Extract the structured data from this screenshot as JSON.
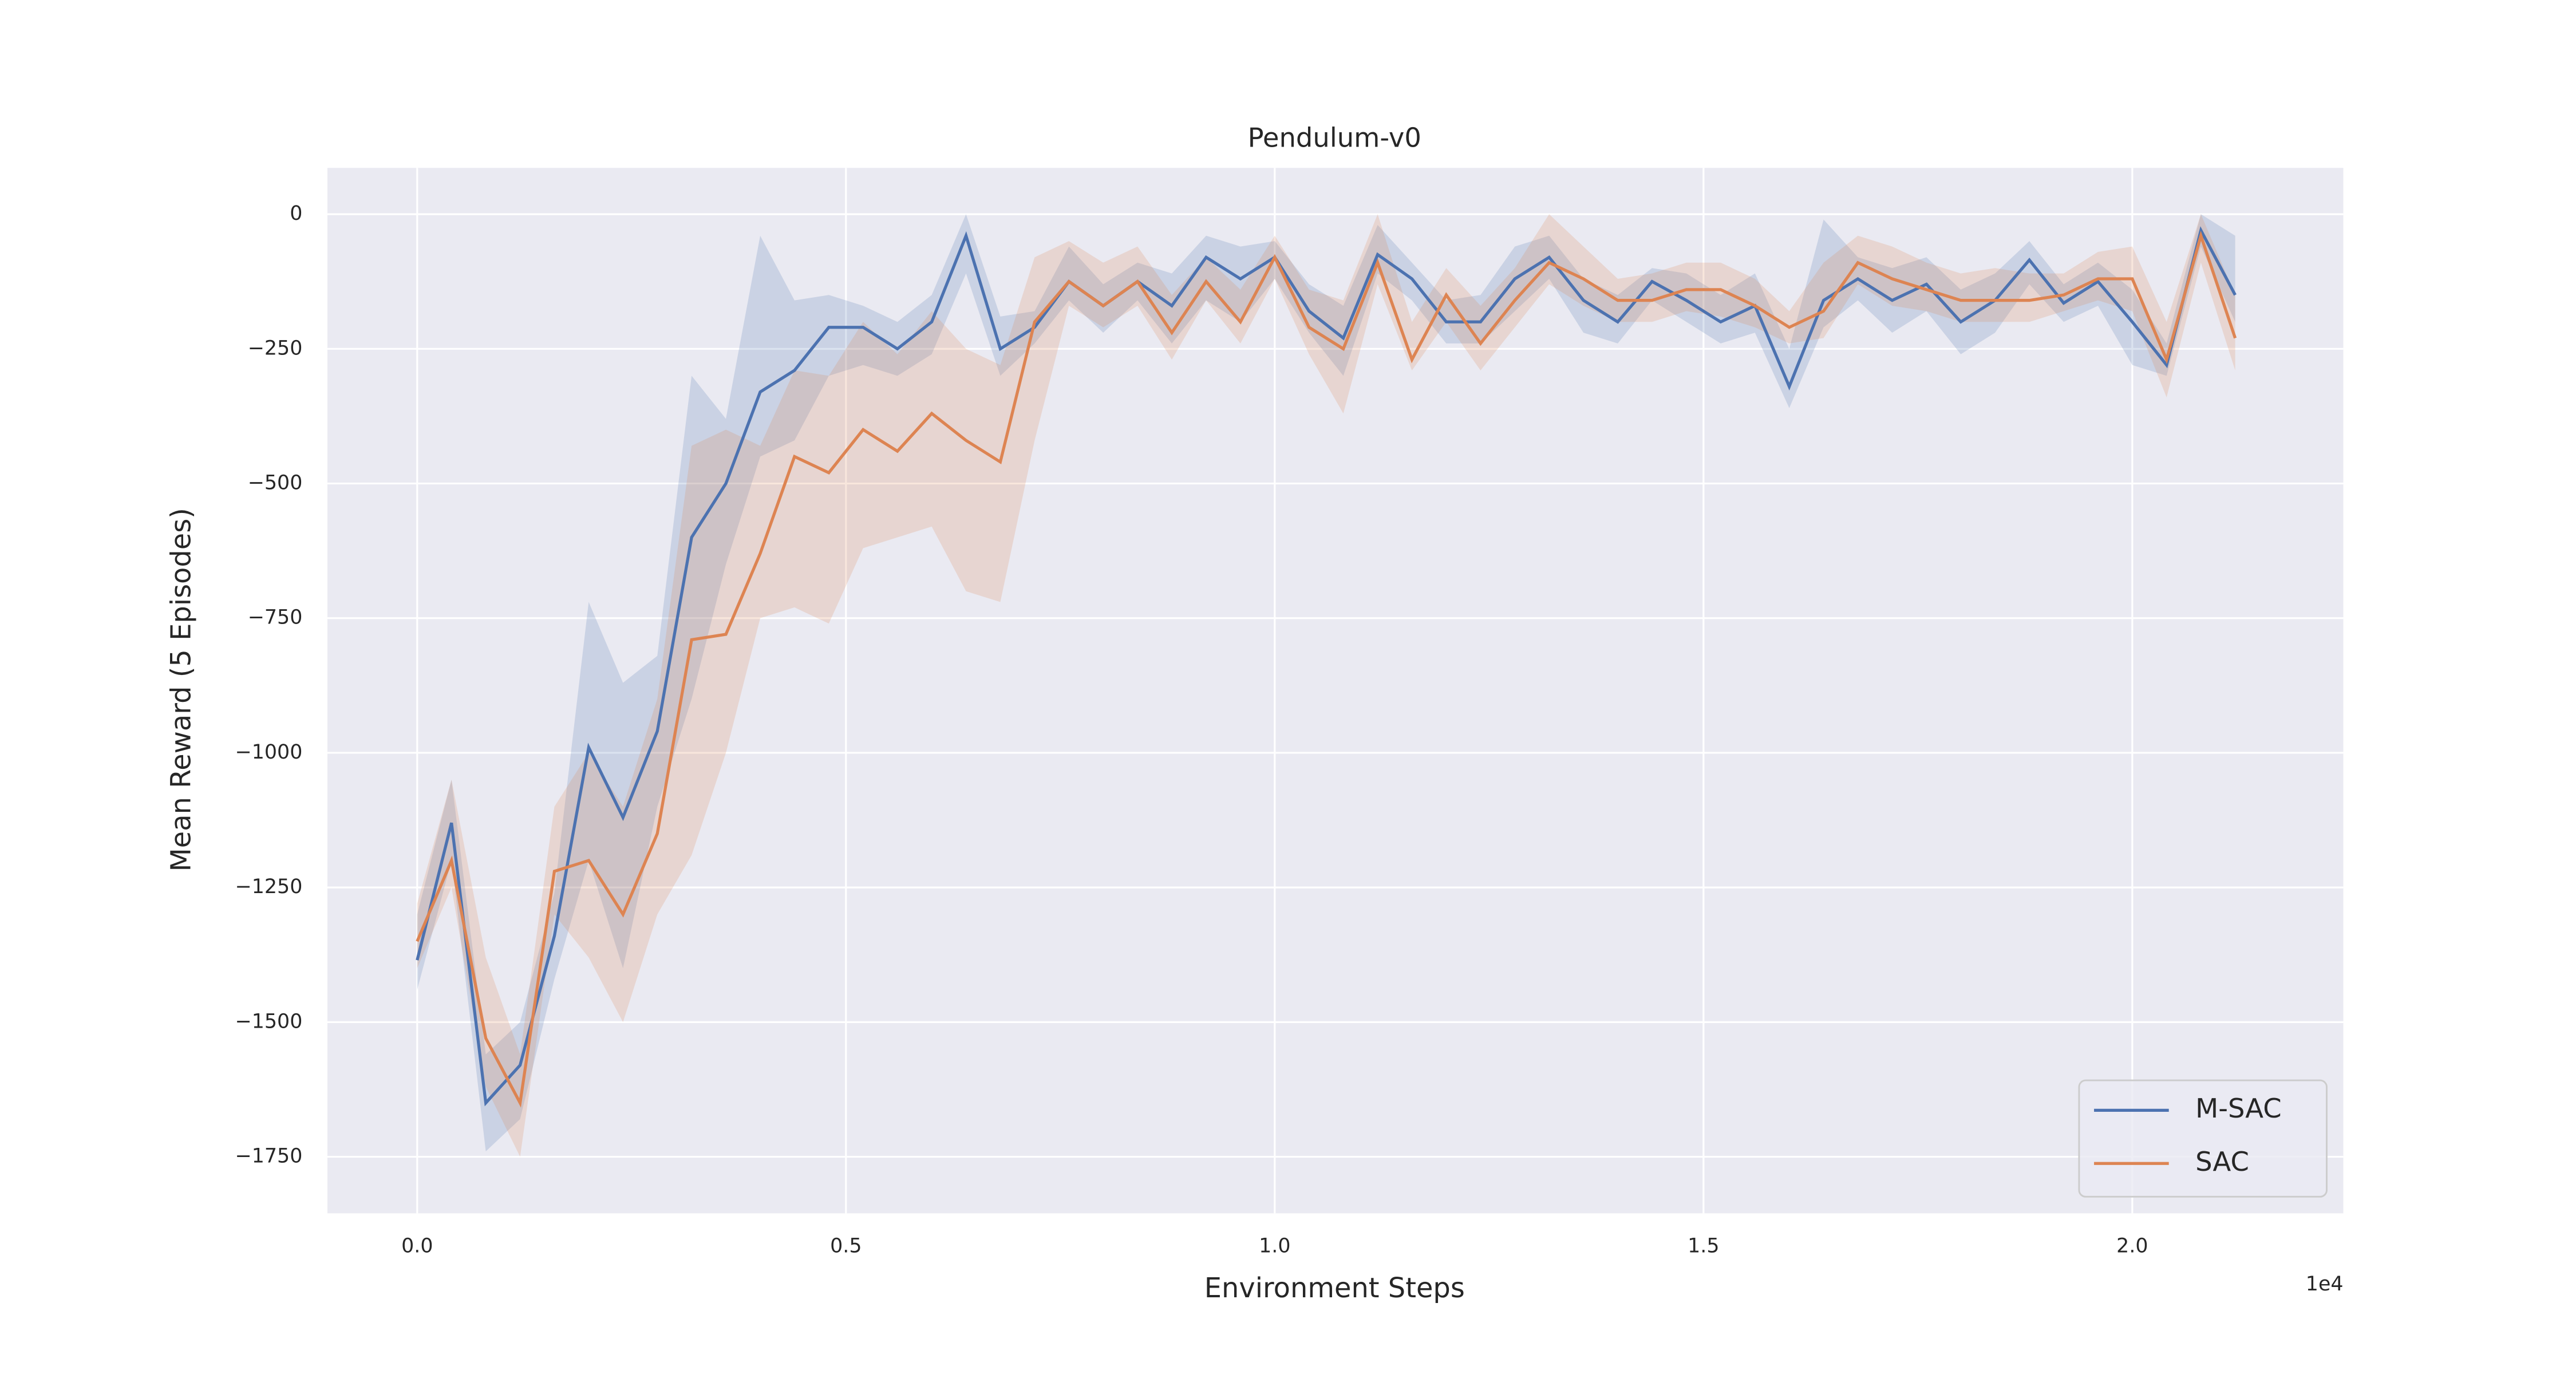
{
  "chart_data": {
    "type": "line",
    "title": "Pendulum-v0",
    "xlabel": "Environment Steps",
    "ylabel": "Mean Reward (5 Episodes)",
    "x_offset_label": "1e4",
    "x": [
      0,
      400,
      800,
      1200,
      1600,
      2000,
      2400,
      2800,
      3200,
      3600,
      4000,
      4400,
      4800,
      5200,
      5600,
      6000,
      6400,
      6800,
      7200,
      7600,
      8000,
      8400,
      8800,
      9200,
      9600,
      10000,
      10400,
      10800,
      11200,
      11600,
      12000,
      12400,
      12800,
      13200,
      13600,
      14000,
      14400,
      14800,
      15200,
      15600,
      16000,
      16400,
      16800,
      17200,
      17600,
      18000,
      18400,
      18800,
      19200,
      19600,
      20000,
      20400,
      20800,
      21200
    ],
    "series": [
      {
        "name": "M-SAC",
        "color": "#4c72b0",
        "values": [
          -1385,
          -1130,
          -1650,
          -1580,
          -1340,
          -990,
          -1120,
          -960,
          -600,
          -500,
          -330,
          -290,
          -210,
          -210,
          -250,
          -200,
          -40,
          -250,
          -210,
          -125,
          -170,
          -125,
          -170,
          -80,
          -120,
          -80,
          -180,
          -230,
          -75,
          -120,
          -200,
          -200,
          -120,
          -80,
          -160,
          -200,
          -125,
          -160,
          -200,
          -170,
          -320,
          -160,
          -120,
          -160,
          -130,
          -200,
          -160,
          -85,
          -165,
          -125,
          -200,
          -280,
          -30,
          -150
        ],
        "lower": [
          -1440,
          -1200,
          -1740,
          -1680,
          -1420,
          -1200,
          -1400,
          -1100,
          -900,
          -650,
          -450,
          -420,
          -300,
          -280,
          -300,
          -260,
          -110,
          -300,
          -240,
          -160,
          -220,
          -160,
          -240,
          -160,
          -200,
          -120,
          -220,
          -300,
          -110,
          -160,
          -240,
          -240,
          -180,
          -120,
          -220,
          -240,
          -160,
          -200,
          -240,
          -220,
          -360,
          -210,
          -160,
          -220,
          -180,
          -260,
          -220,
          -130,
          -200,
          -170,
          -280,
          -300,
          -60,
          -200
        ],
        "upper": [
          -1300,
          -1050,
          -1560,
          -1500,
          -1260,
          -720,
          -870,
          -820,
          -300,
          -380,
          -40,
          -160,
          -150,
          -170,
          -200,
          -150,
          0,
          -190,
          -180,
          -60,
          -130,
          -90,
          -110,
          -40,
          -60,
          -50,
          -130,
          -170,
          -20,
          -90,
          -160,
          -150,
          -60,
          -40,
          -120,
          -150,
          -100,
          -110,
          -150,
          -110,
          -250,
          -10,
          -80,
          -100,
          -80,
          -140,
          -110,
          -50,
          -130,
          -90,
          -140,
          -240,
          0,
          -40
        ]
      },
      {
        "name": "SAC",
        "color": "#dd8452",
        "values": [
          -1350,
          -1200,
          -1530,
          -1650,
          -1220,
          -1200,
          -1300,
          -1150,
          -790,
          -780,
          -630,
          -450,
          -480,
          -400,
          -440,
          -370,
          -420,
          -460,
          -200,
          -125,
          -170,
          -125,
          -220,
          -125,
          -200,
          -80,
          -210,
          -250,
          -90,
          -270,
          -150,
          -240,
          -160,
          -90,
          -120,
          -160,
          -160,
          -140,
          -140,
          -170,
          -210,
          -180,
          -90,
          -120,
          -140,
          -160,
          -160,
          -160,
          -150,
          -120,
          -120,
          -270,
          -40,
          -230
        ],
        "lower": [
          -1400,
          -1250,
          -1620,
          -1750,
          -1300,
          -1380,
          -1500,
          -1300,
          -1190,
          -1000,
          -750,
          -730,
          -760,
          -620,
          -600,
          -580,
          -700,
          -720,
          -420,
          -170,
          -210,
          -170,
          -270,
          -160,
          -240,
          -120,
          -260,
          -370,
          -130,
          -290,
          -200,
          -290,
          -210,
          -130,
          -170,
          -200,
          -200,
          -180,
          -190,
          -210,
          -240,
          -230,
          -130,
          -170,
          -180,
          -200,
          -200,
          -200,
          -180,
          -160,
          -180,
          -340,
          -90,
          -290
        ],
        "upper": [
          -1280,
          -1050,
          -1380,
          -1560,
          -1100,
          -1000,
          -1100,
          -900,
          -430,
          -400,
          -430,
          -290,
          -300,
          -200,
          -260,
          -180,
          -250,
          -280,
          -80,
          -50,
          -90,
          -60,
          -150,
          -80,
          -140,
          -40,
          -140,
          -160,
          0,
          -200,
          -100,
          -170,
          -100,
          0,
          -60,
          -120,
          -110,
          -90,
          -90,
          -120,
          -180,
          -90,
          -40,
          -60,
          -90,
          -110,
          -100,
          -110,
          -110,
          -70,
          -60,
          -200,
          0,
          -150
        ]
      }
    ],
    "xlim": [
      -1047,
      22461
    ],
    "xticks": [
      {
        "value": 0,
        "label": "0.0"
      },
      {
        "value": 5000,
        "label": "0.5"
      },
      {
        "value": 10000,
        "label": "1.0"
      },
      {
        "value": 15000,
        "label": "1.5"
      },
      {
        "value": 20000,
        "label": "2.0"
      }
    ],
    "ylim": [
      -1855,
      86
    ],
    "yticks": [
      0,
      {
        "value": -250,
        "label": "−250"
      },
      {
        "value": -500,
        "label": "−500"
      },
      {
        "value": -750,
        "label": "−750"
      },
      {
        "value": -1000,
        "label": "−1000"
      },
      {
        "value": -1250,
        "label": "−1250"
      },
      {
        "value": -1500,
        "label": "−1500"
      },
      {
        "value": -1750,
        "label": "−1750"
      }
    ],
    "grid": true,
    "legend": "lower right"
  }
}
